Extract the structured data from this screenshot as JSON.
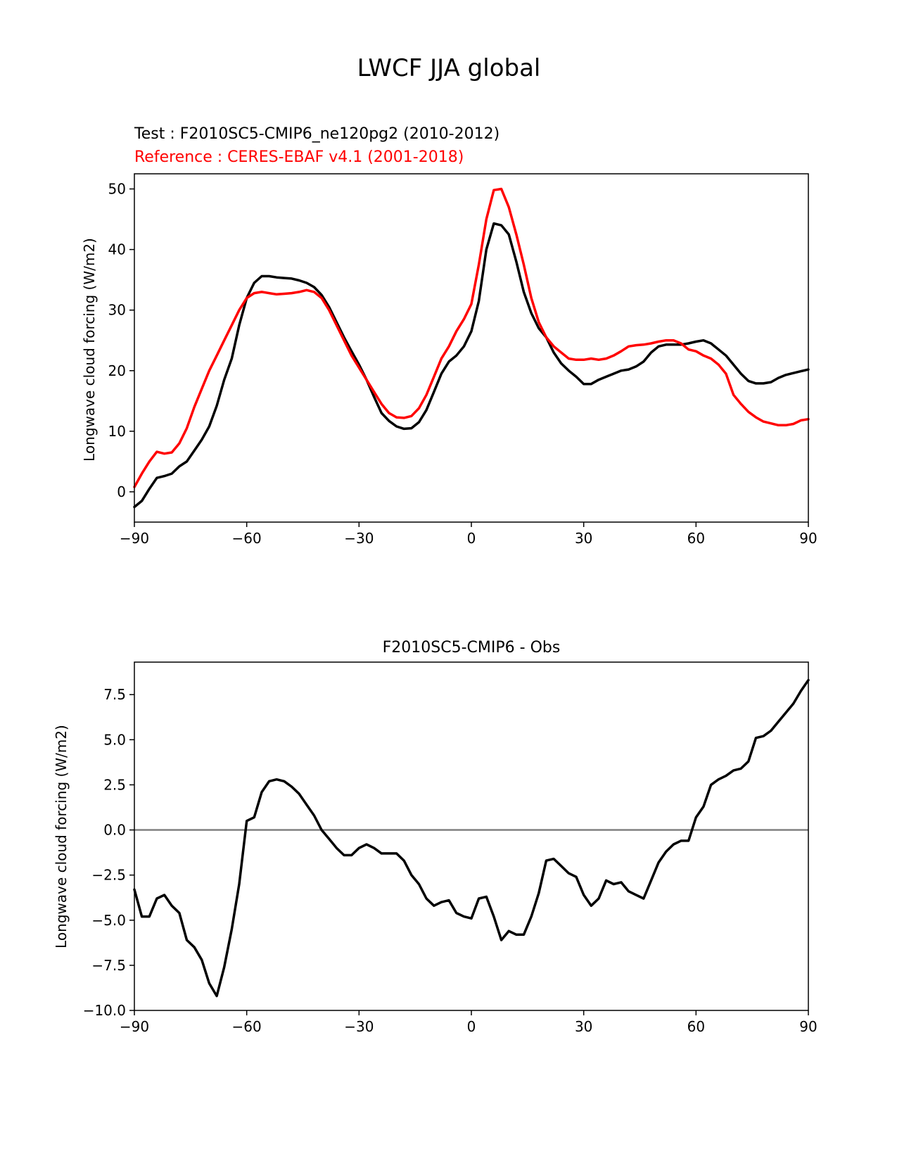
{
  "figure": {
    "title": "LWCF JJA global"
  },
  "chart_data": [
    {
      "type": "line",
      "test_label": "Test : F2010SC5-CMIP6_ne120pg2 (2010-2012)",
      "reference_label": "Reference : CERES-EBAF v4.1 (2001-2018)",
      "xlabel": "",
      "ylabel": "Longwave cloud forcing (W/m2)",
      "xlim": [
        -90,
        90
      ],
      "ylim": [
        -5,
        52.5
      ],
      "xticks": [
        "−90",
        "−60",
        "−30",
        "0",
        "30",
        "60",
        "90"
      ],
      "xtick_values": [
        -90,
        -60,
        -30,
        0,
        30,
        60,
        90
      ],
      "yticks": [
        "0",
        "10",
        "20",
        "30",
        "40",
        "50"
      ],
      "ytick_values": [
        0,
        10,
        20,
        30,
        40,
        50
      ],
      "grid": false,
      "x": [
        -90,
        -88,
        -86,
        -84,
        -82,
        -80,
        -78,
        -76,
        -74,
        -72,
        -70,
        -68,
        -66,
        -64,
        -62,
        -60,
        -58,
        -56,
        -54,
        -52,
        -50,
        -48,
        -46,
        -44,
        -42,
        -40,
        -38,
        -36,
        -34,
        -32,
        -30,
        -28,
        -26,
        -24,
        -22,
        -20,
        -18,
        -16,
        -14,
        -12,
        -10,
        -8,
        -6,
        -4,
        -2,
        0,
        2,
        4,
        6,
        8,
        10,
        12,
        14,
        16,
        18,
        20,
        22,
        24,
        26,
        28,
        30,
        32,
        34,
        36,
        38,
        40,
        42,
        44,
        46,
        48,
        50,
        52,
        54,
        56,
        58,
        60,
        62,
        64,
        66,
        68,
        70,
        72,
        74,
        76,
        78,
        80,
        82,
        84,
        86,
        88,
        90
      ],
      "series": [
        {
          "name": "",
          "color": "#000000",
          "values": [
            -2.5,
            -1.5,
            0.5,
            2.3,
            2.6,
            3.0,
            4.2,
            5.0,
            6.8,
            8.6,
            10.8,
            14.2,
            18.5,
            22.0,
            27.5,
            32.0,
            34.5,
            35.6,
            35.6,
            35.4,
            35.3,
            35.2,
            34.9,
            34.5,
            33.8,
            32.5,
            30.5,
            28.0,
            25.5,
            23.2,
            21.0,
            18.5,
            15.7,
            13.0,
            11.7,
            10.8,
            10.4,
            10.5,
            11.5,
            13.5,
            16.5,
            19.5,
            21.5,
            22.5,
            24.0,
            26.5,
            31.5,
            40.0,
            44.3,
            44.0,
            42.5,
            38.0,
            33.0,
            29.5,
            27.0,
            25.5,
            23.0,
            21.2,
            20.0,
            19.0,
            17.8,
            17.8,
            18.5,
            19.0,
            19.5,
            20.0,
            20.2,
            20.7,
            21.5,
            23.0,
            24.0,
            24.3,
            24.3,
            24.3,
            24.5,
            24.8,
            25.0,
            24.5,
            23.5,
            22.5,
            21.0,
            19.5,
            18.3,
            17.9,
            17.9,
            18.1,
            18.8,
            19.3,
            19.6,
            19.9,
            20.2
          ]
        },
        {
          "name": "",
          "color": "#ff0000",
          "values": [
            0.8,
            3.0,
            5.0,
            6.6,
            6.3,
            6.5,
            8.0,
            10.5,
            14.0,
            17.0,
            20.0,
            22.5,
            25.0,
            27.5,
            30.0,
            32.0,
            32.8,
            33.0,
            32.8,
            32.6,
            32.7,
            32.8,
            33.0,
            33.3,
            33.0,
            32.0,
            30.0,
            27.5,
            25.0,
            22.5,
            20.5,
            18.5,
            16.5,
            14.5,
            13.0,
            12.3,
            12.2,
            12.5,
            13.8,
            16.0,
            19.0,
            22.0,
            24.0,
            26.5,
            28.5,
            31.0,
            37.5,
            45.0,
            49.8,
            50.0,
            47.0,
            42.5,
            37.5,
            32.0,
            28.0,
            25.5,
            24.0,
            23.0,
            22.0,
            21.8,
            21.8,
            22.0,
            21.8,
            22.0,
            22.5,
            23.2,
            24.0,
            24.2,
            24.3,
            24.5,
            24.8,
            25.0,
            25.0,
            24.5,
            23.5,
            23.2,
            22.5,
            22.0,
            21.0,
            19.5,
            16.0,
            14.5,
            13.2,
            12.3,
            11.6,
            11.3,
            11.0,
            11.0,
            11.2,
            11.8,
            12.0
          ]
        }
      ]
    },
    {
      "type": "line",
      "title": "F2010SC5-CMIP6 - Obs",
      "xlabel": "",
      "ylabel": "Longwave cloud forcing (W/m2)",
      "xlim": [
        -90,
        90
      ],
      "ylim": [
        -10,
        9.3
      ],
      "xticks": [
        "−90",
        "−60",
        "−30",
        "0",
        "30",
        "60",
        "90"
      ],
      "xtick_values": [
        -90,
        -60,
        -30,
        0,
        30,
        60,
        90
      ],
      "yticks": [
        "−10.0",
        "−7.5",
        "−5.0",
        "−2.5",
        "0.0",
        "2.5",
        "5.0",
        "7.5"
      ],
      "ytick_values": [
        -10,
        -7.5,
        -5,
        -2.5,
        0,
        2.5,
        5,
        7.5
      ],
      "grid": false,
      "reference_line": 0,
      "x": [
        -90,
        -88,
        -86,
        -84,
        -82,
        -80,
        -78,
        -76,
        -74,
        -72,
        -70,
        -68,
        -66,
        -64,
        -62,
        -60,
        -58,
        -56,
        -54,
        -52,
        -50,
        -48,
        -46,
        -44,
        -42,
        -40,
        -38,
        -36,
        -34,
        -32,
        -30,
        -28,
        -26,
        -24,
        -22,
        -20,
        -18,
        -16,
        -14,
        -12,
        -10,
        -8,
        -6,
        -4,
        -2,
        0,
        2,
        4,
        6,
        8,
        10,
        12,
        14,
        16,
        18,
        20,
        22,
        24,
        26,
        28,
        30,
        32,
        34,
        36,
        38,
        40,
        42,
        44,
        46,
        48,
        50,
        52,
        54,
        56,
        58,
        60,
        62,
        64,
        66,
        68,
        70,
        72,
        74,
        76,
        78,
        80,
        82,
        84,
        86,
        88,
        90
      ],
      "series": [
        {
          "name": "",
          "color": "#000000",
          "values": [
            -3.3,
            -4.8,
            -4.8,
            -3.8,
            -3.6,
            -4.2,
            -4.6,
            -6.1,
            -6.5,
            -7.2,
            -8.5,
            -9.2,
            -7.6,
            -5.5,
            -3.0,
            0.5,
            0.7,
            2.1,
            2.7,
            2.8,
            2.7,
            2.4,
            2.0,
            1.4,
            0.8,
            0.0,
            -0.5,
            -1.0,
            -1.4,
            -1.4,
            -1.0,
            -0.8,
            -1.0,
            -1.3,
            -1.3,
            -1.3,
            -1.7,
            -2.5,
            -3.0,
            -3.8,
            -4.2,
            -4.0,
            -3.9,
            -4.6,
            -4.8,
            -4.9,
            -3.8,
            -3.7,
            -4.8,
            -6.1,
            -5.6,
            -5.8,
            -5.8,
            -4.8,
            -3.5,
            -1.7,
            -1.6,
            -2.0,
            -2.4,
            -2.6,
            -3.6,
            -4.2,
            -3.8,
            -2.8,
            -3.0,
            -2.9,
            -3.4,
            -3.6,
            -3.8,
            -2.8,
            -1.8,
            -1.2,
            -0.8,
            -0.6,
            -0.6,
            0.7,
            1.3,
            2.5,
            2.8,
            3.0,
            3.3,
            3.4,
            3.8,
            5.1,
            5.2,
            5.5,
            6.0,
            6.5,
            7.0,
            7.7,
            8.3
          ]
        }
      ]
    }
  ]
}
